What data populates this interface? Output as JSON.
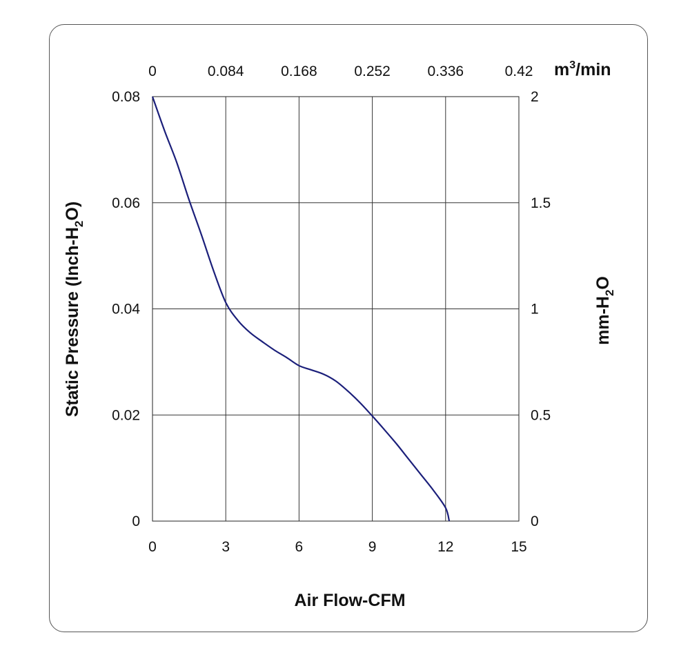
{
  "chart_data": {
    "type": "line",
    "xlabel": "Air Flow-CFM",
    "ylabel": {
      "prefix": "Static Pressure (Inch-H",
      "sub": "2",
      "suffix": "O)"
    },
    "x2label": {
      "base": "m",
      "sup": "3",
      "suffix": "/min"
    },
    "y2label": {
      "prefix": "mm-H",
      "sub": "2",
      "suffix": "O"
    },
    "xlim": [
      0,
      15
    ],
    "ylim": [
      0,
      0.08
    ],
    "x2lim": [
      0,
      0.42
    ],
    "y2lim": [
      0,
      2
    ],
    "x_ticks": [
      "0",
      "3",
      "6",
      "9",
      "12",
      "15"
    ],
    "y_ticks": [
      "0",
      "0.02",
      "0.04",
      "0.06",
      "0.08"
    ],
    "x2_ticks": [
      "0",
      "0.084",
      "0.168",
      "0.252",
      "0.336",
      "0.42"
    ],
    "y2_ticks": [
      "0",
      "0.5",
      "1",
      "1.5",
      "2"
    ],
    "grid": true,
    "series": [
      {
        "color": "#1b1f7a",
        "x": [
          0,
          0.5,
          1,
          1.5,
          2,
          2.5,
          3,
          3.5,
          4,
          4.5,
          5,
          5.5,
          6,
          6.5,
          7,
          7.5,
          8,
          8.5,
          9,
          9.5,
          10,
          10.5,
          11,
          11.5,
          12,
          12.15
        ],
        "y": [
          0.08,
          0.0735,
          0.0675,
          0.0605,
          0.054,
          0.0472,
          0.0412,
          0.0378,
          0.0355,
          0.0338,
          0.0322,
          0.0308,
          0.0293,
          0.0285,
          0.0277,
          0.0264,
          0.0245,
          0.0223,
          0.0198,
          0.0172,
          0.0145,
          0.0116,
          0.0087,
          0.0058,
          0.0025,
          0
        ]
      }
    ]
  }
}
